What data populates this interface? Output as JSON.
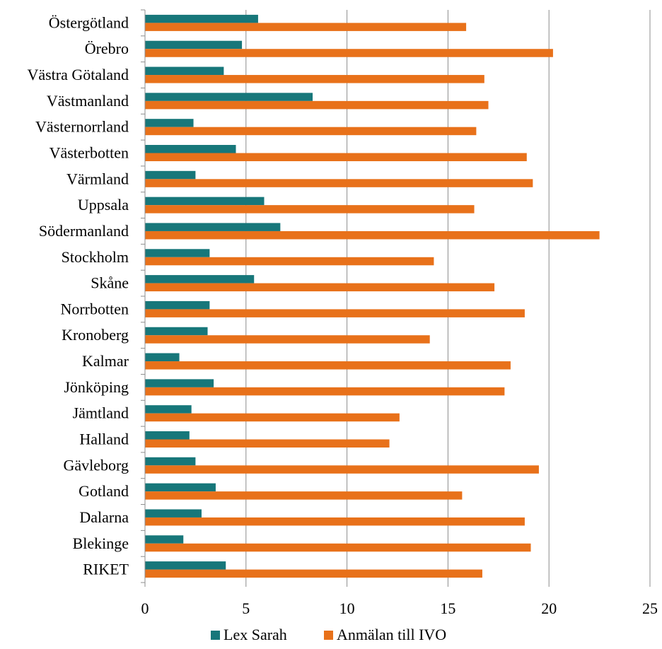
{
  "chart_data": {
    "type": "bar",
    "orientation": "horizontal",
    "categories": [
      "Östergötland",
      "Örebro",
      "Västra Götaland",
      "Västmanland",
      "Västernorrland",
      "Västerbotten",
      "Värmland",
      "Uppsala",
      "Södermanland",
      "Stockholm",
      "Skåne",
      "Norrbotten",
      "Kronoberg",
      "Kalmar",
      "Jönköping",
      "Jämtland",
      "Halland",
      "Gävleborg",
      "Gotland",
      "Dalarna",
      "Blekinge",
      "RIKET"
    ],
    "series": [
      {
        "name": "Lex Sarah",
        "color": "#17777a",
        "values": [
          5.6,
          4.8,
          3.9,
          8.3,
          2.4,
          4.5,
          2.5,
          5.9,
          6.7,
          3.2,
          5.4,
          3.2,
          3.1,
          1.7,
          3.4,
          2.3,
          2.2,
          2.5,
          3.5,
          2.8,
          1.9,
          4.0
        ]
      },
      {
        "name": "Anmälan till IVO",
        "color": "#e8711a",
        "values": [
          15.9,
          20.2,
          16.8,
          17.0,
          16.4,
          18.9,
          19.2,
          16.3,
          22.5,
          14.3,
          17.3,
          18.8,
          14.1,
          18.1,
          17.8,
          12.6,
          12.1,
          19.5,
          15.7,
          18.8,
          19.1,
          16.7
        ]
      }
    ],
    "xlim": [
      0,
      25
    ],
    "xticks": [
      "0",
      "5",
      "10",
      "15",
      "20",
      "25"
    ],
    "grid": "vertical",
    "legend": "bottom",
    "title": "",
    "xlabel": "",
    "ylabel": ""
  }
}
